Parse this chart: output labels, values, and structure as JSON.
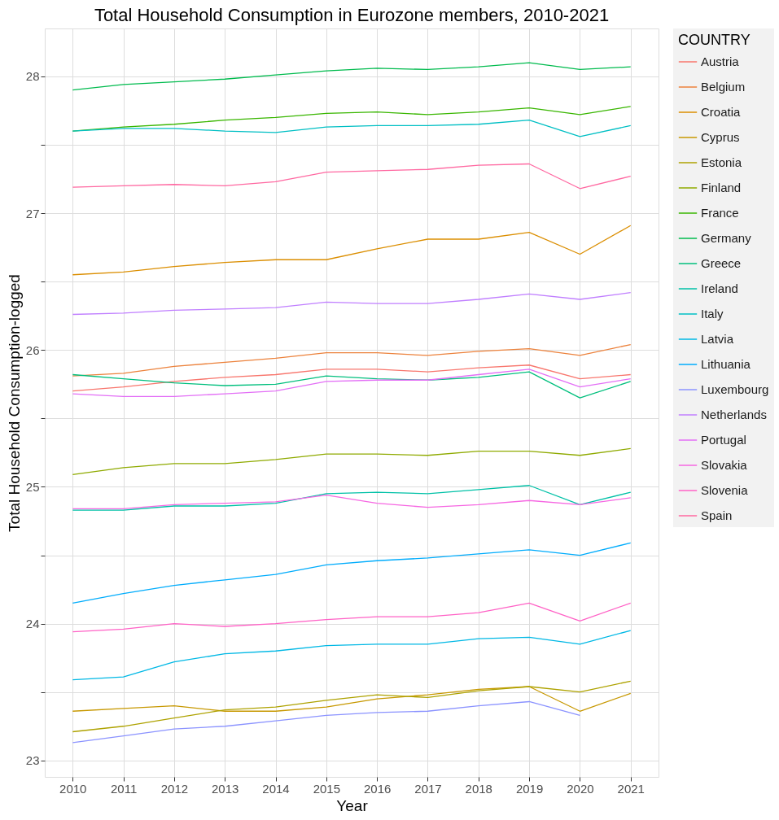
{
  "chart_data": {
    "type": "line",
    "title": "Total Household Consumption in Eurozone members, 2010-2021",
    "xlabel": "Year",
    "ylabel": "Total Household Consumption-logged",
    "legend_title": "COUNTRY",
    "legend": "right",
    "grid": true,
    "marker": "none",
    "line_style": "solid",
    "x": [
      2010,
      2011,
      2012,
      2013,
      2014,
      2015,
      2016,
      2017,
      2018,
      2019,
      2020,
      2021
    ],
    "xlim": [
      2009.45,
      2021.55
    ],
    "xticks": [
      2010,
      2011,
      2012,
      2013,
      2014,
      2015,
      2016,
      2017,
      2018,
      2019,
      2020,
      2021
    ],
    "ylim": [
      22.88,
      28.35
    ],
    "yticks": [
      23,
      {
        "value": 23.5,
        "label": null
      },
      24,
      {
        "value": 24.5,
        "label": null
      },
      25,
      {
        "value": 25.5,
        "label": null
      },
      26,
      {
        "value": 26.5,
        "label": null
      },
      27,
      {
        "value": 27.5,
        "label": null
      },
      28
    ],
    "series": [
      {
        "name": "Austria",
        "color": "#f8766d",
        "values": [
          25.7,
          25.73,
          25.77,
          25.8,
          25.82,
          25.86,
          25.86,
          25.84,
          25.87,
          25.89,
          25.79,
          25.82
        ]
      },
      {
        "name": "Belgium",
        "color": "#ec823c",
        "values": [
          25.81,
          25.83,
          25.88,
          25.91,
          25.94,
          25.98,
          25.98,
          25.96,
          25.99,
          26.01,
          25.96,
          26.04
        ]
      },
      {
        "name": "Croatia",
        "color": "#db8e00",
        "values": [
          26.55,
          26.57,
          26.61,
          26.64,
          26.66,
          26.66,
          26.74,
          26.81,
          26.81,
          26.86,
          26.7,
          26.91
        ]
      },
      {
        "name": "Cyprus",
        "color": "#c79800",
        "values": [
          23.36,
          23.38,
          23.4,
          23.36,
          23.36,
          23.39,
          23.45,
          23.48,
          23.52,
          23.54,
          23.36,
          23.49
        ]
      },
      {
        "name": "Estonia",
        "color": "#aea200",
        "values": [
          23.21,
          23.25,
          23.31,
          23.37,
          23.39,
          23.44,
          23.48,
          23.46,
          23.51,
          23.54,
          23.5,
          23.58
        ]
      },
      {
        "name": "Finland",
        "color": "#8faa00",
        "values": [
          25.09,
          25.14,
          25.17,
          25.17,
          25.2,
          25.24,
          25.24,
          25.23,
          25.26,
          25.26,
          25.23,
          25.28
        ]
      },
      {
        "name": "France",
        "color": "#39b600",
        "values": [
          27.6,
          27.63,
          27.65,
          27.68,
          27.7,
          27.73,
          27.74,
          27.72,
          27.74,
          27.77,
          27.72,
          27.78
        ]
      },
      {
        "name": "Germany",
        "color": "#00bb4e",
        "values": [
          27.9,
          27.94,
          27.96,
          27.98,
          28.01,
          28.04,
          28.06,
          28.05,
          28.07,
          28.1,
          28.05,
          28.07
        ]
      },
      {
        "name": "Greece",
        "color": "#00bf7d",
        "values": [
          25.82,
          25.79,
          25.76,
          25.74,
          25.75,
          25.81,
          25.79,
          25.78,
          25.8,
          25.84,
          25.65,
          25.77
        ]
      },
      {
        "name": "Ireland",
        "color": "#00c1a7",
        "values": [
          24.83,
          24.83,
          24.86,
          24.86,
          24.88,
          24.95,
          24.96,
          24.95,
          24.98,
          25.01,
          24.87,
          24.96
        ]
      },
      {
        "name": "Italy",
        "color": "#00bfc4",
        "values": [
          27.6,
          27.62,
          27.62,
          27.6,
          27.59,
          27.63,
          27.64,
          27.64,
          27.65,
          27.68,
          27.56,
          27.64
        ]
      },
      {
        "name": "Latvia",
        "color": "#00b8e5",
        "values": [
          23.59,
          23.61,
          23.72,
          23.78,
          23.8,
          23.84,
          23.85,
          23.85,
          23.89,
          23.9,
          23.85,
          23.95
        ]
      },
      {
        "name": "Lithuania",
        "color": "#00acfc",
        "values": [
          24.15,
          24.22,
          24.28,
          24.32,
          24.36,
          24.43,
          24.46,
          24.48,
          24.51,
          24.54,
          24.5,
          24.59
        ]
      },
      {
        "name": "Luxembourg",
        "color": "#8b93ff",
        "values": [
          23.13,
          23.18,
          23.23,
          23.25,
          23.29,
          23.33,
          23.35,
          23.36,
          23.4,
          23.43,
          23.33,
          null
        ]
      },
      {
        "name": "Netherlands",
        "color": "#c07fff",
        "values": [
          26.26,
          26.27,
          26.29,
          26.3,
          26.31,
          26.35,
          26.34,
          26.34,
          26.37,
          26.41,
          26.37,
          26.42
        ]
      },
      {
        "name": "Portugal",
        "color": "#e36ff6",
        "values": [
          25.68,
          25.66,
          25.66,
          25.68,
          25.7,
          25.77,
          25.78,
          25.78,
          25.82,
          25.86,
          25.73,
          25.79
        ]
      },
      {
        "name": "Slovakia",
        "color": "#f667e2",
        "values": [
          24.84,
          24.84,
          24.87,
          24.88,
          24.89,
          24.94,
          24.88,
          24.85,
          24.87,
          24.9,
          24.87,
          24.92
        ]
      },
      {
        "name": "Slovenia",
        "color": "#ff62c6",
        "values": [
          23.94,
          23.96,
          24.0,
          23.98,
          24.0,
          24.03,
          24.05,
          24.05,
          24.08,
          24.15,
          24.02,
          24.15
        ]
      },
      {
        "name": "Spain",
        "color": "#ff68a1",
        "values": [
          27.19,
          27.2,
          27.21,
          27.2,
          27.23,
          27.3,
          27.31,
          27.32,
          27.35,
          27.36,
          27.18,
          27.27
        ]
      }
    ]
  }
}
